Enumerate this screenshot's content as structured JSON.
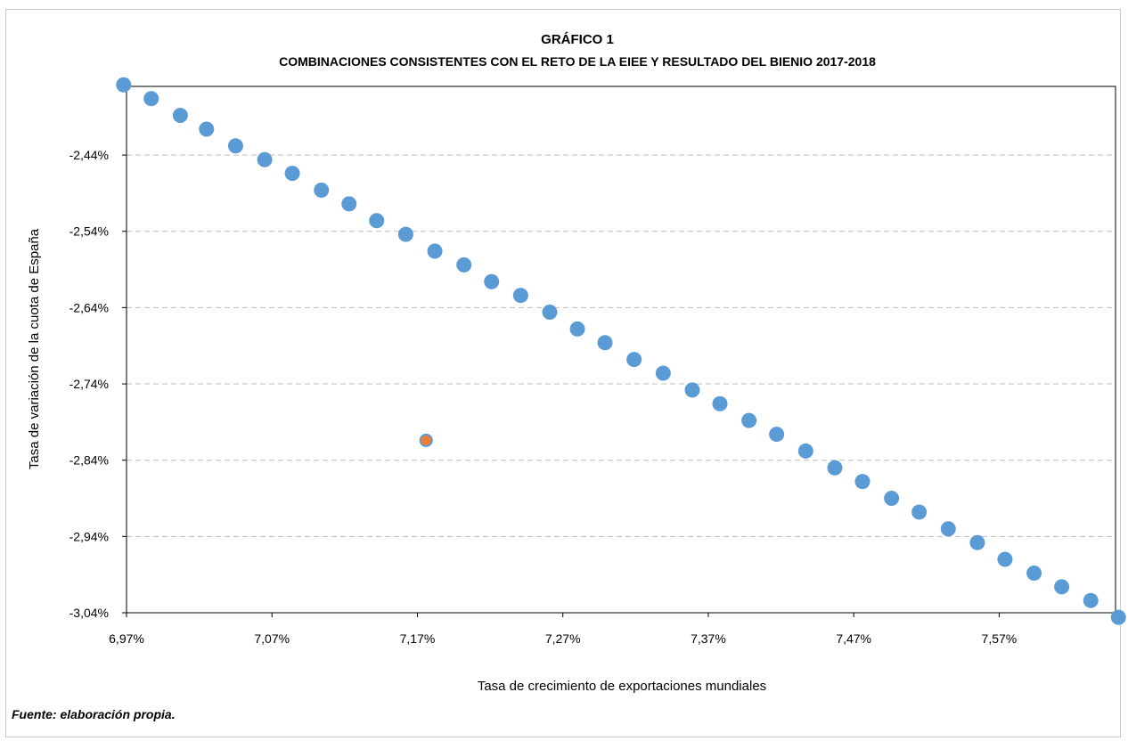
{
  "chart_data": {
    "type": "scatter",
    "title": "GRÁFICO 1",
    "subtitle": "COMBINACIONES CONSISTENTES CON EL RETO DE LA EIEE Y RESULTADO DEL BIENIO 2017-2018",
    "xlabel": "Tasa de crecimiento de exportaciones mundiales",
    "ylabel": "Tasa de variación de la cuota de España",
    "xlim": [
      6.97,
      7.65
    ],
    "ylim": [
      -3.04,
      -2.35
    ],
    "x_ticks": [
      6.97,
      7.07,
      7.17,
      7.27,
      7.37,
      7.47,
      7.57
    ],
    "x_tick_labels": [
      "6,97%",
      "7,07%",
      "7,17%",
      "7,27%",
      "7,37%",
      "7,47%",
      "7,57%"
    ],
    "y_ticks": [
      -2.44,
      -2.54,
      -2.64,
      -2.74,
      -2.84,
      -2.94,
      -3.04
    ],
    "y_tick_labels": [
      "-2,44%",
      "-2,54%",
      "-2,64%",
      "-2,74%",
      "-2,84%",
      "-2,94%",
      "-3,04%"
    ],
    "grid": "horizontal-dashed",
    "colors": {
      "series": "#5b9bd5",
      "highlight": "#ed7d31",
      "grid": "#bfbfbf"
    },
    "series": [
      {
        "x": [
          6.968,
          6.987,
          7.007,
          7.025,
          7.045,
          7.065,
          7.084,
          7.104,
          7.123,
          7.142,
          7.162,
          7.182,
          7.202,
          7.221,
          7.241,
          7.261,
          7.28,
          7.299,
          7.319,
          7.339,
          7.359,
          7.378,
          7.398,
          7.417,
          7.437,
          7.457,
          7.476,
          7.496,
          7.515,
          7.535,
          7.555,
          7.574,
          7.594,
          7.613,
          7.633,
          7.652
        ],
        "y": [
          -2.348,
          -2.366,
          -2.388,
          -2.406,
          -2.428,
          -2.446,
          -2.464,
          -2.486,
          -2.504,
          -2.526,
          -2.544,
          -2.566,
          -2.584,
          -2.606,
          -2.624,
          -2.646,
          -2.668,
          -2.686,
          -2.708,
          -2.726,
          -2.748,
          -2.766,
          -2.788,
          -2.806,
          -2.828,
          -2.85,
          -2.868,
          -2.89,
          -2.908,
          -2.93,
          -2.948,
          -2.97,
          -2.988,
          -3.006,
          -3.024,
          -3.046
        ]
      },
      {
        "x": [
          7.176
        ],
        "y": [
          -2.814
        ]
      }
    ]
  },
  "source": "Fuente: elaboración propia."
}
